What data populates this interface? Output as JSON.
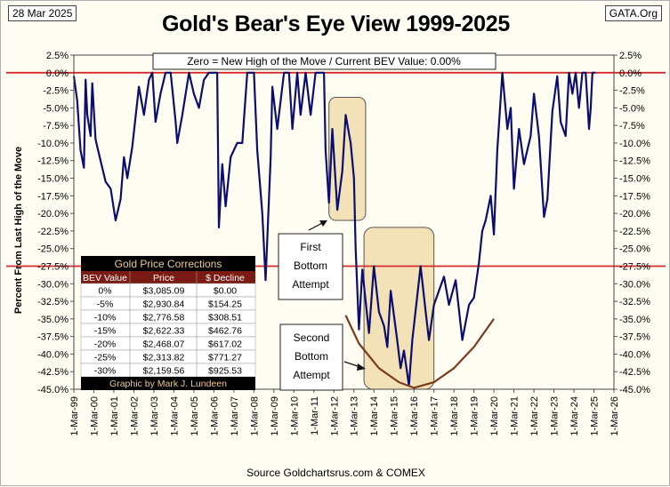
{
  "header": {
    "date": "28 Mar 2025",
    "site": "GATA.Org",
    "title": "Gold's Bear's Eye View 1999-2025"
  },
  "source": "Source Goldchartsrus.com  & COMEX",
  "annotations": {
    "bev_note": "Zero = New High of the Move / Current BEV Value:  0.00%",
    "first_bottom": [
      "First",
      "Bottom",
      "Attempt"
    ],
    "second_bottom": [
      "Second",
      "Bottom",
      "Attempt"
    ]
  },
  "corrections_table": {
    "title": "Gold Price Corrections",
    "headers": [
      "BEV Value",
      "Price",
      "$ Decline"
    ],
    "rows": [
      [
        "0%",
        "$3,085.09",
        "$0.00"
      ],
      [
        "-5%",
        "$2,930.84",
        "$154.25"
      ],
      [
        "-10%",
        "$2,776.58",
        "$308.51"
      ],
      [
        "-15%",
        "$2,622.33",
        "$462.76"
      ],
      [
        "-20%",
        "$2,468.07",
        "$617.02"
      ],
      [
        "-25%",
        "$2,313.82",
        "$771.27"
      ],
      [
        "-30%",
        "$2,159.56",
        "$925.53"
      ]
    ],
    "footer": "Graphic by Mark J. Lundeen"
  },
  "colors": {
    "line": "#0b0e6e",
    "reference": "#d62b2b",
    "highlight_fill": "#f3e2b8",
    "curve": "#7a3b1e",
    "table_title_bg": "#000000",
    "table_title_text": "#e8c98f",
    "table_header_bg": "#7a1c14",
    "table_row_bg": "#ffffff"
  },
  "chart_data": {
    "type": "line",
    "title": "Gold's Bear's Eye View 1999-2025",
    "ylabel": "Percent  From Last High of the Move",
    "xlabel": "",
    "ylim": [
      -45,
      2.5
    ],
    "xlim": [
      "1999-03-01",
      "2026-03-01"
    ],
    "yticks": [
      "2.5%",
      "0.0%",
      "-2.5%",
      "-5.0%",
      "-7.5%",
      "-10.0%",
      "-12.5%",
      "-15.0%",
      "-17.5%",
      "-20.0%",
      "-22.5%",
      "-25.0%",
      "-27.5%",
      "-30.0%",
      "-32.5%",
      "-35.0%",
      "-37.5%",
      "-40.0%",
      "-42.5%",
      "-45.0%"
    ],
    "xticks": [
      "1-Mar-99",
      "1-Mar-00",
      "1-Mar-01",
      "1-Mar-02",
      "1-Mar-03",
      "1-Mar-04",
      "1-Mar-05",
      "1-Mar-06",
      "1-Mar-07",
      "1-Mar-08",
      "1-Mar-09",
      "1-Mar-10",
      "1-Mar-11",
      "1-Mar-12",
      "1-Mar-13",
      "1-Mar-14",
      "1-Mar-15",
      "1-Mar-16",
      "1-Mar-17",
      "1-Mar-18",
      "1-Mar-19",
      "1-Mar-20",
      "1-Mar-21",
      "1-Mar-22",
      "1-Mar-23",
      "1-Mar-24",
      "1-Mar-25",
      "1-Mar-26"
    ],
    "reference_lines": [
      0,
      -27.5
    ],
    "current_value": 0.0,
    "series": [
      {
        "values": [
          [
            "1999-03-01",
            -0.5
          ],
          [
            "1999-05-01",
            -4.0
          ],
          [
            "1999-07-01",
            -11.0
          ],
          [
            "1999-09-01",
            -13.5
          ],
          [
            "1999-10-01",
            -1.0
          ],
          [
            "1999-11-01",
            -6.0
          ],
          [
            "2000-01-01",
            -9.0
          ],
          [
            "2000-02-01",
            -1.5
          ],
          [
            "2000-04-01",
            -9.5
          ],
          [
            "2000-07-01",
            -12.5
          ],
          [
            "2000-10-01",
            -15.5
          ],
          [
            "2001-01-01",
            -16.5
          ],
          [
            "2001-04-01",
            -21.0
          ],
          [
            "2001-07-01",
            -18.0
          ],
          [
            "2001-09-01",
            -12.0
          ],
          [
            "2001-11-01",
            -15.0
          ],
          [
            "2002-02-01",
            -10.5
          ],
          [
            "2002-06-01",
            -2.0
          ],
          [
            "2002-09-01",
            -6.0
          ],
          [
            "2002-12-01",
            -1.0
          ],
          [
            "2003-02-01",
            0.0
          ],
          [
            "2003-04-01",
            -7.0
          ],
          [
            "2003-07-01",
            -3.0
          ],
          [
            "2003-10-01",
            0.0
          ],
          [
            "2004-01-01",
            0.0
          ],
          [
            "2004-04-01",
            -7.0
          ],
          [
            "2004-05-01",
            -10.0
          ],
          [
            "2004-08-01",
            -6.0
          ],
          [
            "2004-12-01",
            0.0
          ],
          [
            "2005-03-01",
            -3.0
          ],
          [
            "2005-06-01",
            -5.0
          ],
          [
            "2005-09-01",
            -1.0
          ],
          [
            "2005-12-01",
            0.0
          ],
          [
            "2006-05-01",
            0.0
          ],
          [
            "2006-06-01",
            -22.0
          ],
          [
            "2006-08-01",
            -13.0
          ],
          [
            "2006-10-01",
            -19.0
          ],
          [
            "2007-01-01",
            -12.0
          ],
          [
            "2007-05-01",
            -10.0
          ],
          [
            "2007-08-01",
            -10.0
          ],
          [
            "2007-11-01",
            0.0
          ],
          [
            "2008-03-01",
            0.0
          ],
          [
            "2008-05-01",
            -11.0
          ],
          [
            "2008-08-01",
            -20.0
          ],
          [
            "2008-10-01",
            -29.5
          ],
          [
            "2009-01-01",
            -12.0
          ],
          [
            "2009-02-01",
            -2.0
          ],
          [
            "2009-05-01",
            -8.0
          ],
          [
            "2009-09-01",
            0.0
          ],
          [
            "2009-12-01",
            0.0
          ],
          [
            "2010-02-01",
            -8.0
          ],
          [
            "2010-05-01",
            0.0
          ],
          [
            "2010-07-01",
            -6.0
          ],
          [
            "2010-10-01",
            0.0
          ],
          [
            "2011-01-01",
            -6.0
          ],
          [
            "2011-04-01",
            0.0
          ],
          [
            "2011-09-01",
            0.0
          ],
          [
            "2011-10-01",
            -11.0
          ],
          [
            "2011-12-01",
            -18.5
          ],
          [
            "2012-02-01",
            -8.0
          ],
          [
            "2012-05-01",
            -19.5
          ],
          [
            "2012-08-01",
            -14.0
          ],
          [
            "2012-10-01",
            -6.0
          ],
          [
            "2013-01-01",
            -10.0
          ],
          [
            "2013-03-01",
            -15.0
          ],
          [
            "2013-04-01",
            -25.0
          ],
          [
            "2013-06-01",
            -36.5
          ],
          [
            "2013-08-01",
            -28.0
          ],
          [
            "2013-12-01",
            -37.0
          ],
          [
            "2014-03-01",
            -27.5
          ],
          [
            "2014-06-01",
            -34.0
          ],
          [
            "2014-09-01",
            -36.0
          ],
          [
            "2014-11-01",
            -39.0
          ],
          [
            "2015-01-01",
            -31.0
          ],
          [
            "2015-05-01",
            -38.0
          ],
          [
            "2015-07-01",
            -42.0
          ],
          [
            "2015-09-01",
            -39.5
          ],
          [
            "2015-12-01",
            -44.5
          ],
          [
            "2016-02-01",
            -38.0
          ],
          [
            "2016-07-01",
            -27.5
          ],
          [
            "2016-10-01",
            -34.0
          ],
          [
            "2016-12-01",
            -38.0
          ],
          [
            "2017-03-01",
            -33.0
          ],
          [
            "2017-06-01",
            -31.0
          ],
          [
            "2017-09-01",
            -29.0
          ],
          [
            "2017-12-01",
            -33.0
          ],
          [
            "2018-04-01",
            -29.5
          ],
          [
            "2018-08-01",
            -38.0
          ],
          [
            "2018-12-01",
            -33.0
          ],
          [
            "2019-03-01",
            -32.0
          ],
          [
            "2019-06-01",
            -27.0
          ],
          [
            "2019-08-01",
            -22.5
          ],
          [
            "2019-10-01",
            -21.0
          ],
          [
            "2020-01-01",
            -17.5
          ],
          [
            "2020-03-01",
            -23.0
          ],
          [
            "2020-05-01",
            -11.0
          ],
          [
            "2020-08-01",
            0.0
          ],
          [
            "2020-11-01",
            -8.0
          ],
          [
            "2021-01-01",
            -5.0
          ],
          [
            "2021-03-01",
            -16.5
          ],
          [
            "2021-06-01",
            -8.0
          ],
          [
            "2021-09-01",
            -13.0
          ],
          [
            "2022-01-01",
            -9.0
          ],
          [
            "2022-03-01",
            -3.0
          ],
          [
            "2022-06-01",
            -9.0
          ],
          [
            "2022-09-01",
            -20.5
          ],
          [
            "2022-11-01",
            -18.0
          ],
          [
            "2023-02-01",
            -5.5
          ],
          [
            "2023-05-01",
            -0.5
          ],
          [
            "2023-07-01",
            -7.0
          ],
          [
            "2023-10-01",
            -9.0
          ],
          [
            "2023-12-01",
            0.0
          ],
          [
            "2024-02-01",
            -3.0
          ],
          [
            "2024-04-01",
            0.0
          ],
          [
            "2024-06-01",
            -5.0
          ],
          [
            "2024-08-01",
            0.0
          ],
          [
            "2024-10-01",
            0.0
          ],
          [
            "2024-12-01",
            -8.0
          ],
          [
            "2025-01-01",
            -5.0
          ],
          [
            "2025-02-01",
            0.0
          ],
          [
            "2025-03-28",
            0.0
          ]
        ]
      }
    ],
    "trend_curve": [
      [
        "2012-10-01",
        -34.5
      ],
      [
        "2013-06-01",
        -38.5
      ],
      [
        "2014-06-01",
        -42.0
      ],
      [
        "2015-06-01",
        -44.0
      ],
      [
        "2016-03-01",
        -44.8
      ],
      [
        "2017-03-01",
        -44.0
      ],
      [
        "2018-03-01",
        -42.0
      ],
      [
        "2019-03-01",
        -39.0
      ],
      [
        "2020-03-01",
        -35.0
      ]
    ]
  }
}
